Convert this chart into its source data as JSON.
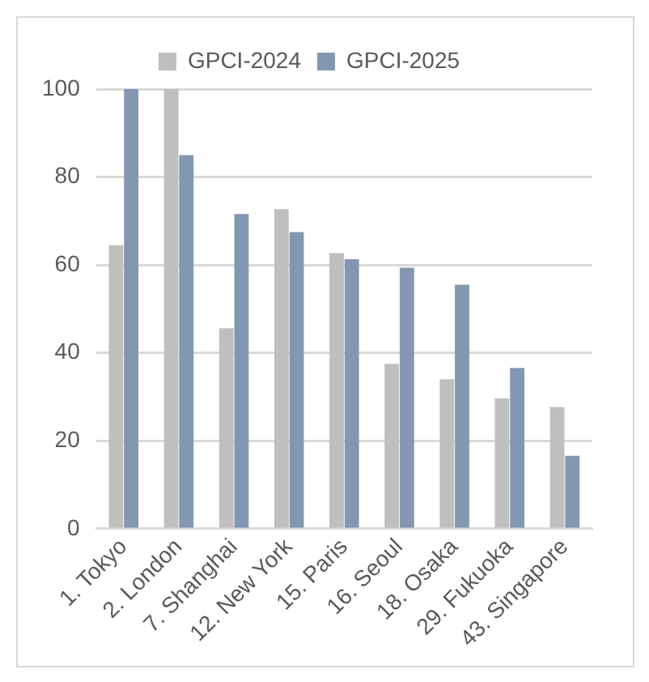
{
  "chart_data": {
    "type": "bar",
    "categories": [
      "1. Tokyo",
      "2. London",
      "7. Shanghai",
      "12. New York",
      "15. Paris",
      "16. Seoul",
      "18. Osaka",
      "29. Fukuoka",
      "43. Singapore"
    ],
    "series": [
      {
        "name": "GPCI-2024",
        "color": "#bfbfbf",
        "values": [
          64.5,
          100,
          45.6,
          72.7,
          62.7,
          37.5,
          34,
          29.7,
          27.7
        ]
      },
      {
        "name": "GPCI-2025",
        "color": "#8497b0",
        "values": [
          100,
          85,
          71.6,
          67.5,
          61.3,
          59.4,
          55.5,
          36.6,
          16.6
        ]
      }
    ],
    "ylim": [
      0,
      100
    ],
    "yticks": [
      0,
      20,
      40,
      60,
      80,
      100
    ],
    "grid": "y",
    "legend": "top"
  }
}
